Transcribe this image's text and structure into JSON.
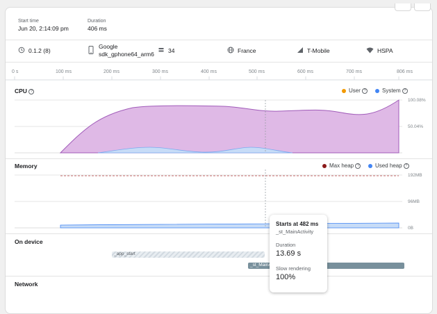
{
  "summary": {
    "start_label": "Start time",
    "start_value": "Jun 20, 2:14:09 pm",
    "duration_label": "Duration",
    "duration_value": "406 ms"
  },
  "info": {
    "version": "0.1.2 (8)",
    "device_line1": "Google",
    "device_line2": "sdk_gphone64_arm6",
    "api_level": "34",
    "country": "France",
    "carrier": "T-Mobile",
    "network_type": "HSPA"
  },
  "timeline": {
    "ticks": [
      "0 s",
      "100 ms",
      "200 ms",
      "300 ms",
      "400 ms",
      "500 ms",
      "600 ms",
      "700 ms",
      "806 ms"
    ]
  },
  "cpu": {
    "title": "CPU",
    "legend_user": "User",
    "legend_system": "System",
    "max_label": "100.08%",
    "mid_label": "50.04%",
    "colors": {
      "user": "#f29900",
      "system": "#4285f4",
      "fill": "#dfb9e6",
      "stroke": "#a05bb9"
    }
  },
  "memory": {
    "title": "Memory",
    "legend_max": "Max heap",
    "legend_used": "Used heap",
    "top_label": "192MB",
    "mid_label": "96MB",
    "zero_label": "0B",
    "colors": {
      "max": "#8b1a1a",
      "used": "#4285f4"
    }
  },
  "on_device": {
    "title": "On device",
    "trace1": "_app_start",
    "trace2": "_st_MainActivity"
  },
  "network": {
    "title": "Network"
  },
  "tooltip": {
    "starts": "Starts at 482 ms",
    "name": "_st_MainActivity",
    "duration_label": "Duration",
    "duration_value": "13.69 s",
    "slow_label": "Slow rendering",
    "slow_value": "100%"
  }
}
